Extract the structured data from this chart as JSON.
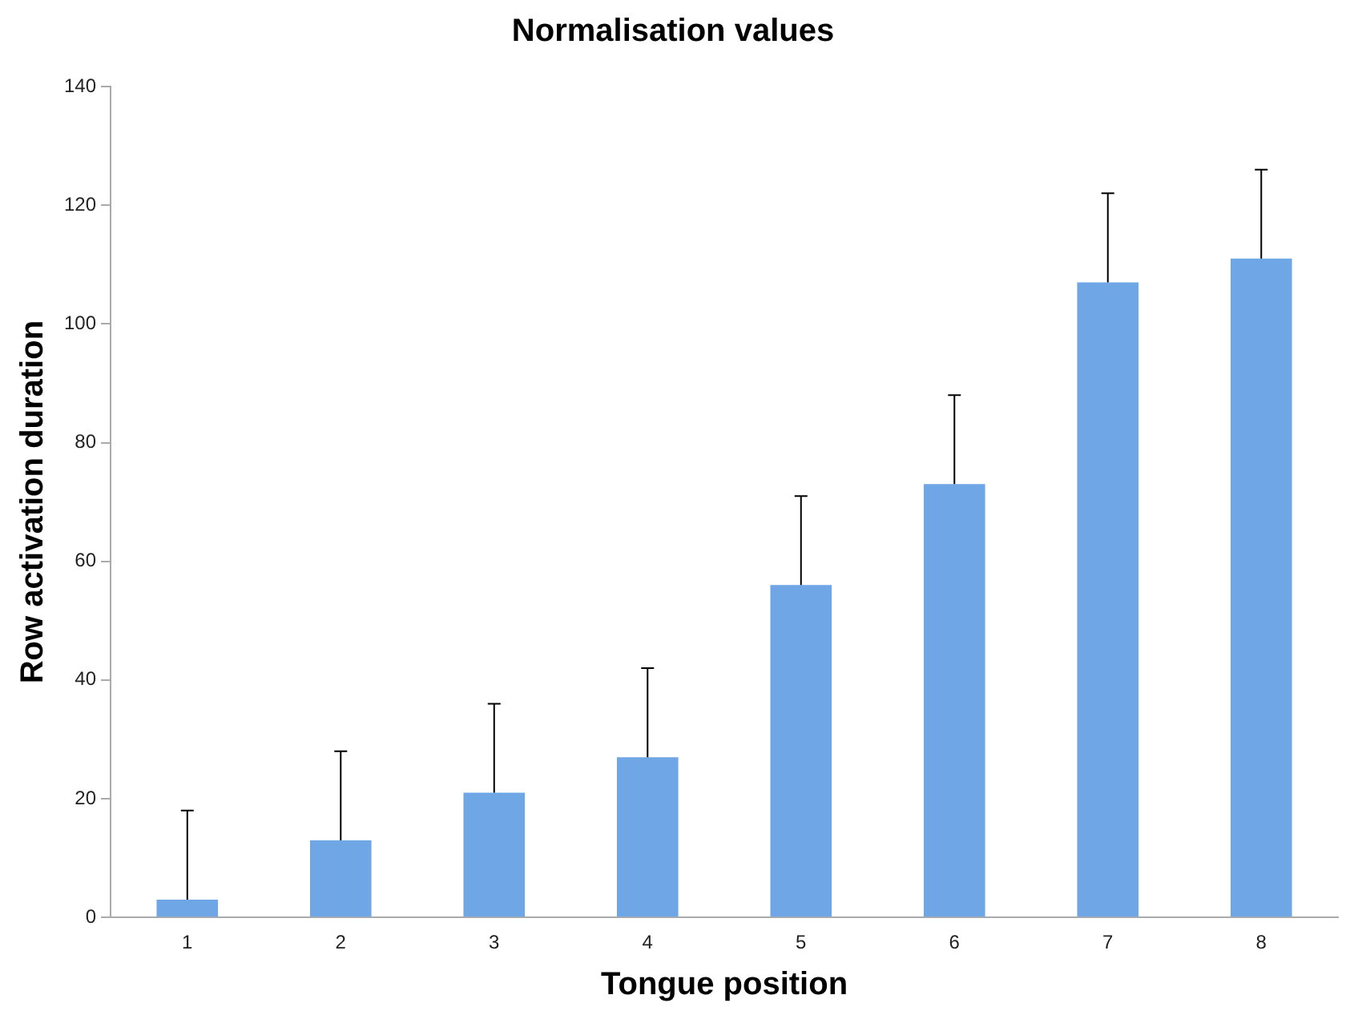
{
  "chart_data": {
    "type": "bar",
    "title": "Normalisation values",
    "xlabel": "Tongue position",
    "ylabel": "Row activation duration",
    "categories": [
      "1",
      "2",
      "3",
      "4",
      "5",
      "6",
      "7",
      "8"
    ],
    "values": [
      3,
      13,
      21,
      27,
      56,
      73,
      107,
      111
    ],
    "errors": [
      [
        3,
        18
      ],
      [
        13,
        28
      ],
      [
        21,
        36
      ],
      [
        27,
        42
      ],
      [
        56,
        71
      ],
      [
        73,
        88
      ],
      [
        107,
        122
      ],
      [
        111,
        126
      ]
    ],
    "color": "#6fa6e6",
    "ylim": [
      0,
      140
    ],
    "yticks": [
      0,
      20,
      40,
      60,
      80,
      100,
      120,
      140
    ],
    "grid": false,
    "legend": false
  }
}
